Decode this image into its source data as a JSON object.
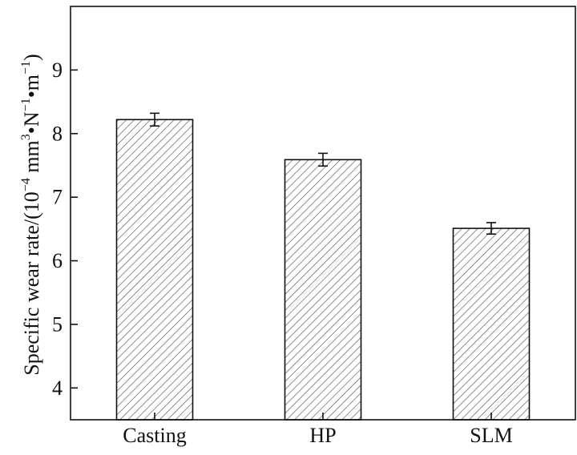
{
  "chart_data": {
    "type": "bar",
    "title": "",
    "xlabel": "",
    "ylabel": {
      "main": "Specific wear rate/(10",
      "exp1": "−4",
      "unit1": " mm",
      "exp2": "3",
      "unit2": "•N",
      "exp3": "−1",
      "unit3": "•m",
      "exp4": "−1",
      "close": ")"
    },
    "categories": [
      "Casting",
      "HP",
      "SLM"
    ],
    "values": [
      8.22,
      7.59,
      6.51
    ],
    "errors": [
      0.1,
      0.1,
      0.09
    ],
    "ylim": [
      3.5,
      10
    ],
    "yticks": [
      "4",
      "5",
      "6",
      "7",
      "8",
      "9"
    ],
    "grid": false,
    "legend": "none",
    "bar_fill": "hatched",
    "colors": {
      "bar_stroke": "#111111",
      "hatch": "#555555",
      "axis": "#111111"
    }
  }
}
